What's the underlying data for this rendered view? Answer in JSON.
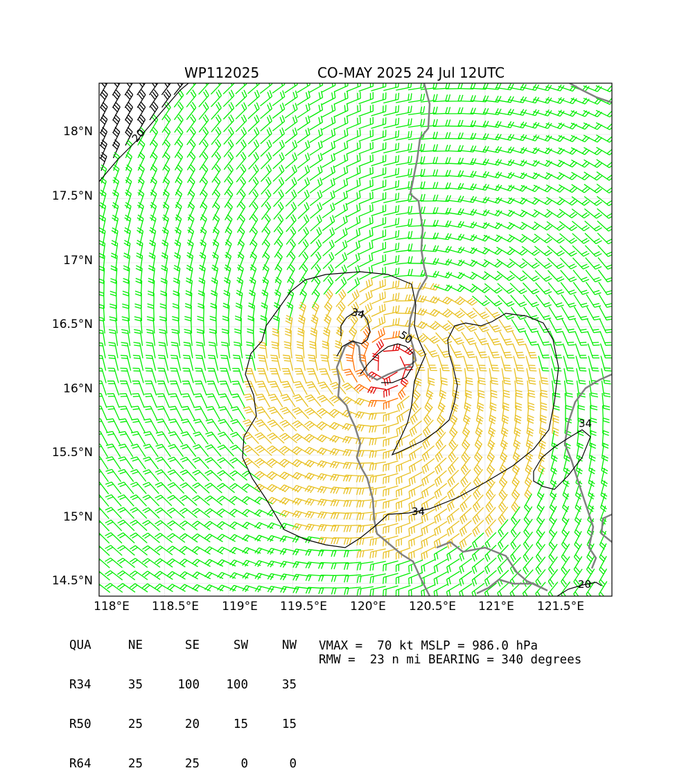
{
  "title": {
    "storm_id": "WP112025",
    "run": "CO-MAY 2025 24 Jul 12UTC"
  },
  "axes": {
    "lat_ticks": [
      "18°N",
      "17.5°N",
      "17°N",
      "16.5°N",
      "16°N",
      "15.5°N",
      "15°N",
      "14.5°N"
    ],
    "lon_ticks": [
      "118°E",
      "118.5°E",
      "119°E",
      "119.5°E",
      "120°E",
      "120.5°E",
      "121°E",
      "121.5°E"
    ],
    "lat_range": [
      14.4,
      18.4
    ],
    "lon_range": [
      117.99,
      121.99
    ]
  },
  "contour_labels": [
    "20",
    "34",
    "50",
    "34",
    "34",
    "20"
  ],
  "wind_colors": {
    "lt34": "#00ee00",
    "34to50": "#e8c020",
    "50to64": "#ff7000",
    "ge64": "#e00000",
    "calm": "#000000",
    "coast": "#808080"
  },
  "radii_table": {
    "header": [
      "QUA",
      "NE",
      "SE",
      "SW",
      "NW"
    ],
    "rows": [
      [
        "R34",
        "35",
        "100",
        "100",
        "35"
      ],
      [
        "R50",
        "25",
        "20",
        "15",
        "15"
      ],
      [
        "R64",
        "25",
        "25",
        "0",
        "0"
      ]
    ]
  },
  "summary": {
    "line1": "VMAX =  70 kt MSLP = 986.0 hPa",
    "line2": "RMW =  23 n mi BEARING = 340 degrees"
  }
}
